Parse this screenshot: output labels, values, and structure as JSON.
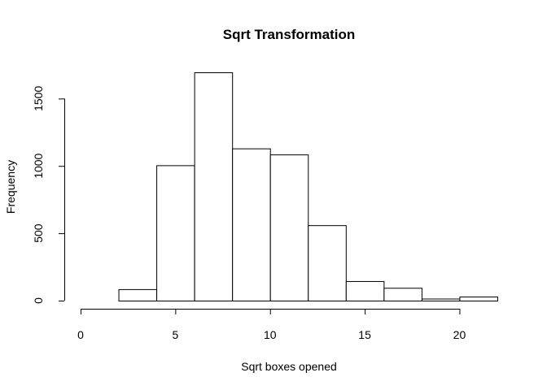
{
  "chart_data": {
    "type": "bar",
    "title": "Sqrt Transformation",
    "xlabel": "Sqrt boxes opened",
    "ylabel": "Frequency",
    "bins": [
      {
        "x0": 0,
        "x1": 2,
        "count": 0
      },
      {
        "x0": 2,
        "x1": 4,
        "count": 85
      },
      {
        "x0": 4,
        "x1": 6,
        "count": 1005
      },
      {
        "x0": 6,
        "x1": 8,
        "count": 1695
      },
      {
        "x0": 8,
        "x1": 10,
        "count": 1130
      },
      {
        "x0": 10,
        "x1": 12,
        "count": 1085
      },
      {
        "x0": 12,
        "x1": 14,
        "count": 560
      },
      {
        "x0": 14,
        "x1": 16,
        "count": 145
      },
      {
        "x0": 16,
        "x1": 18,
        "count": 95
      },
      {
        "x0": 18,
        "x1": 20,
        "count": 15
      },
      {
        "x0": 20,
        "x1": 22,
        "count": 30
      }
    ],
    "xlim": [
      0,
      22
    ],
    "ylim": [
      0,
      1695
    ],
    "xticks": [
      "0",
      "5",
      "10",
      "15",
      "20"
    ],
    "yticks": [
      "0",
      "500",
      "1000",
      "1500"
    ],
    "grid": false,
    "legend": "none"
  }
}
